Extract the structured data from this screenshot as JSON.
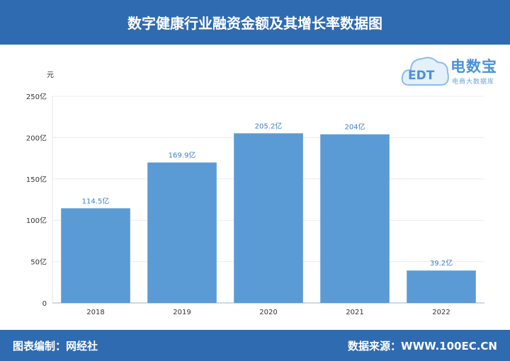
{
  "header": {
    "title": "数字健康行业融资金额及其增长率数据图"
  },
  "logo": {
    "brand": "电数宝",
    "subtitle": "电商大数据库",
    "mark_text": "EDT"
  },
  "footer": {
    "left": "图表编制：网经社",
    "right": "数据来源：WWW.100EC.CN"
  },
  "colors": {
    "header_bg": "#2F6BB0",
    "bar": "#5B9BD5",
    "label": "#3C7FC6"
  },
  "chart_data": {
    "type": "bar",
    "title": "",
    "ylabel": "元",
    "xlabel": "",
    "categories": [
      "2018",
      "2019",
      "2020",
      "2021",
      "2022"
    ],
    "values": [
      114.5,
      169.9,
      205.2,
      204,
      39.2
    ],
    "data_labels": [
      "114.5亿",
      "169.9亿",
      "205.2亿",
      "204亿",
      "39.2亿"
    ],
    "ylim": [
      0,
      250
    ],
    "yticks": [
      0,
      50,
      100,
      150,
      200,
      250
    ],
    "ytick_labels": [
      "0",
      "50亿",
      "100亿",
      "150亿",
      "200亿",
      "250亿"
    ],
    "grid": true,
    "legend": "none"
  }
}
